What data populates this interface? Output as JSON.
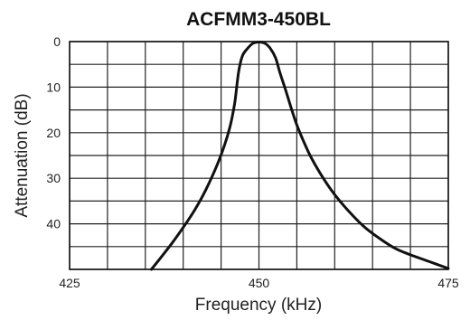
{
  "chart_data": {
    "type": "line",
    "title": "ACFMM3-450BL",
    "xlabel": "Frequency (kHz)",
    "ylabel": "Attenuation (dB)",
    "xlim": [
      425,
      475
    ],
    "ylim": [
      0,
      50
    ],
    "y_inverted": true,
    "grid": true,
    "x_gridlines": [
      425,
      430,
      435,
      440,
      445,
      450,
      455,
      460,
      465,
      470,
      475
    ],
    "y_gridlines": [
      0,
      5,
      10,
      15,
      20,
      25,
      30,
      35,
      40,
      45,
      50
    ],
    "xticks": [
      "425",
      "450",
      "475"
    ],
    "yticks": [
      "0",
      "10",
      "20",
      "30",
      "40"
    ],
    "xtick_values": [
      425,
      450,
      475
    ],
    "ytick_values": [
      0,
      10,
      20,
      30,
      40
    ],
    "series": [
      {
        "x": [
          435.8,
          437,
          438.5,
          440,
          441.5,
          443,
          444.5,
          445.5,
          446.2,
          446.8,
          447.3,
          447.8,
          448.5,
          449.2,
          450,
          450.8,
          451.5,
          452.2,
          452.8,
          453.5,
          454.2,
          455,
          456,
          457,
          458.5,
          460,
          462,
          464,
          466,
          468,
          470,
          472.5,
          475
        ],
        "y": [
          50,
          47.5,
          44.3,
          40.8,
          37,
          32.5,
          27,
          22.5,
          18.5,
          13.5,
          6.8,
          3.2,
          1.5,
          0.4,
          0.1,
          0.4,
          1.5,
          3.6,
          7,
          10.5,
          14.3,
          18.3,
          22.3,
          25.8,
          30,
          33.6,
          37.5,
          40.8,
          43.3,
          45.4,
          46.8,
          48.3,
          49.8
        ]
      }
    ]
  }
}
